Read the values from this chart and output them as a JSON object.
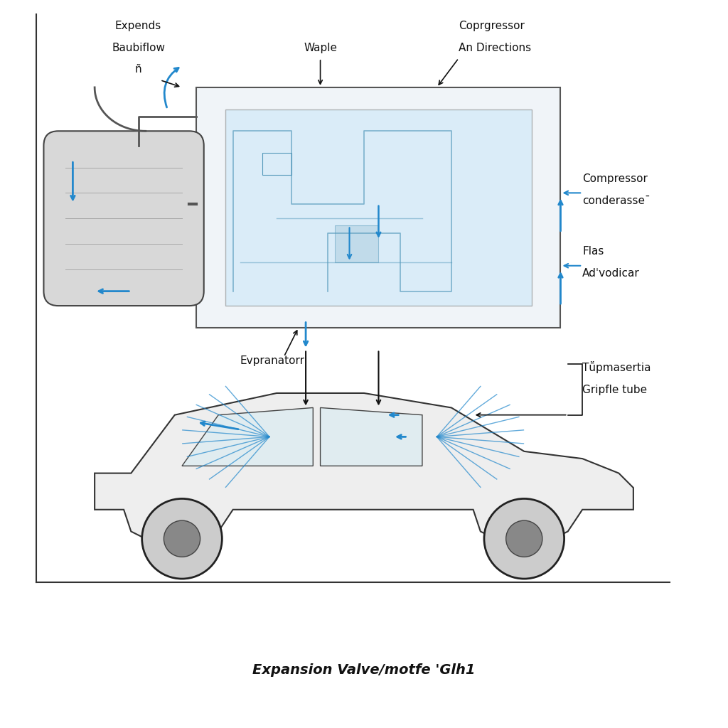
{
  "background_color": "#ffffff",
  "arrow_color": "#2288cc",
  "line_color": "#111111",
  "caption": "Expansion Valve/motfe 'Glh1",
  "label_expends_line1": "Expends",
  "label_expends_line2": "Baubiflow",
  "label_expends_line3": "ñ",
  "label_waple": "Waple",
  "label_compressor_dir_line1": "Coprgressor",
  "label_compressor_dir_line2": "An Directions",
  "label_compressor_cond_line1": "Compressor",
  "label_compressor_cond_line2": "conderasse¯",
  "label_flas_line1": "Flas",
  "label_flas_line2": "Adˈvodicar",
  "label_evpranatorr": "Evpranatorr",
  "label_typmasertia_line1": "Tṻpmasertia",
  "label_typmasertia_line2": "Gripfle tube"
}
